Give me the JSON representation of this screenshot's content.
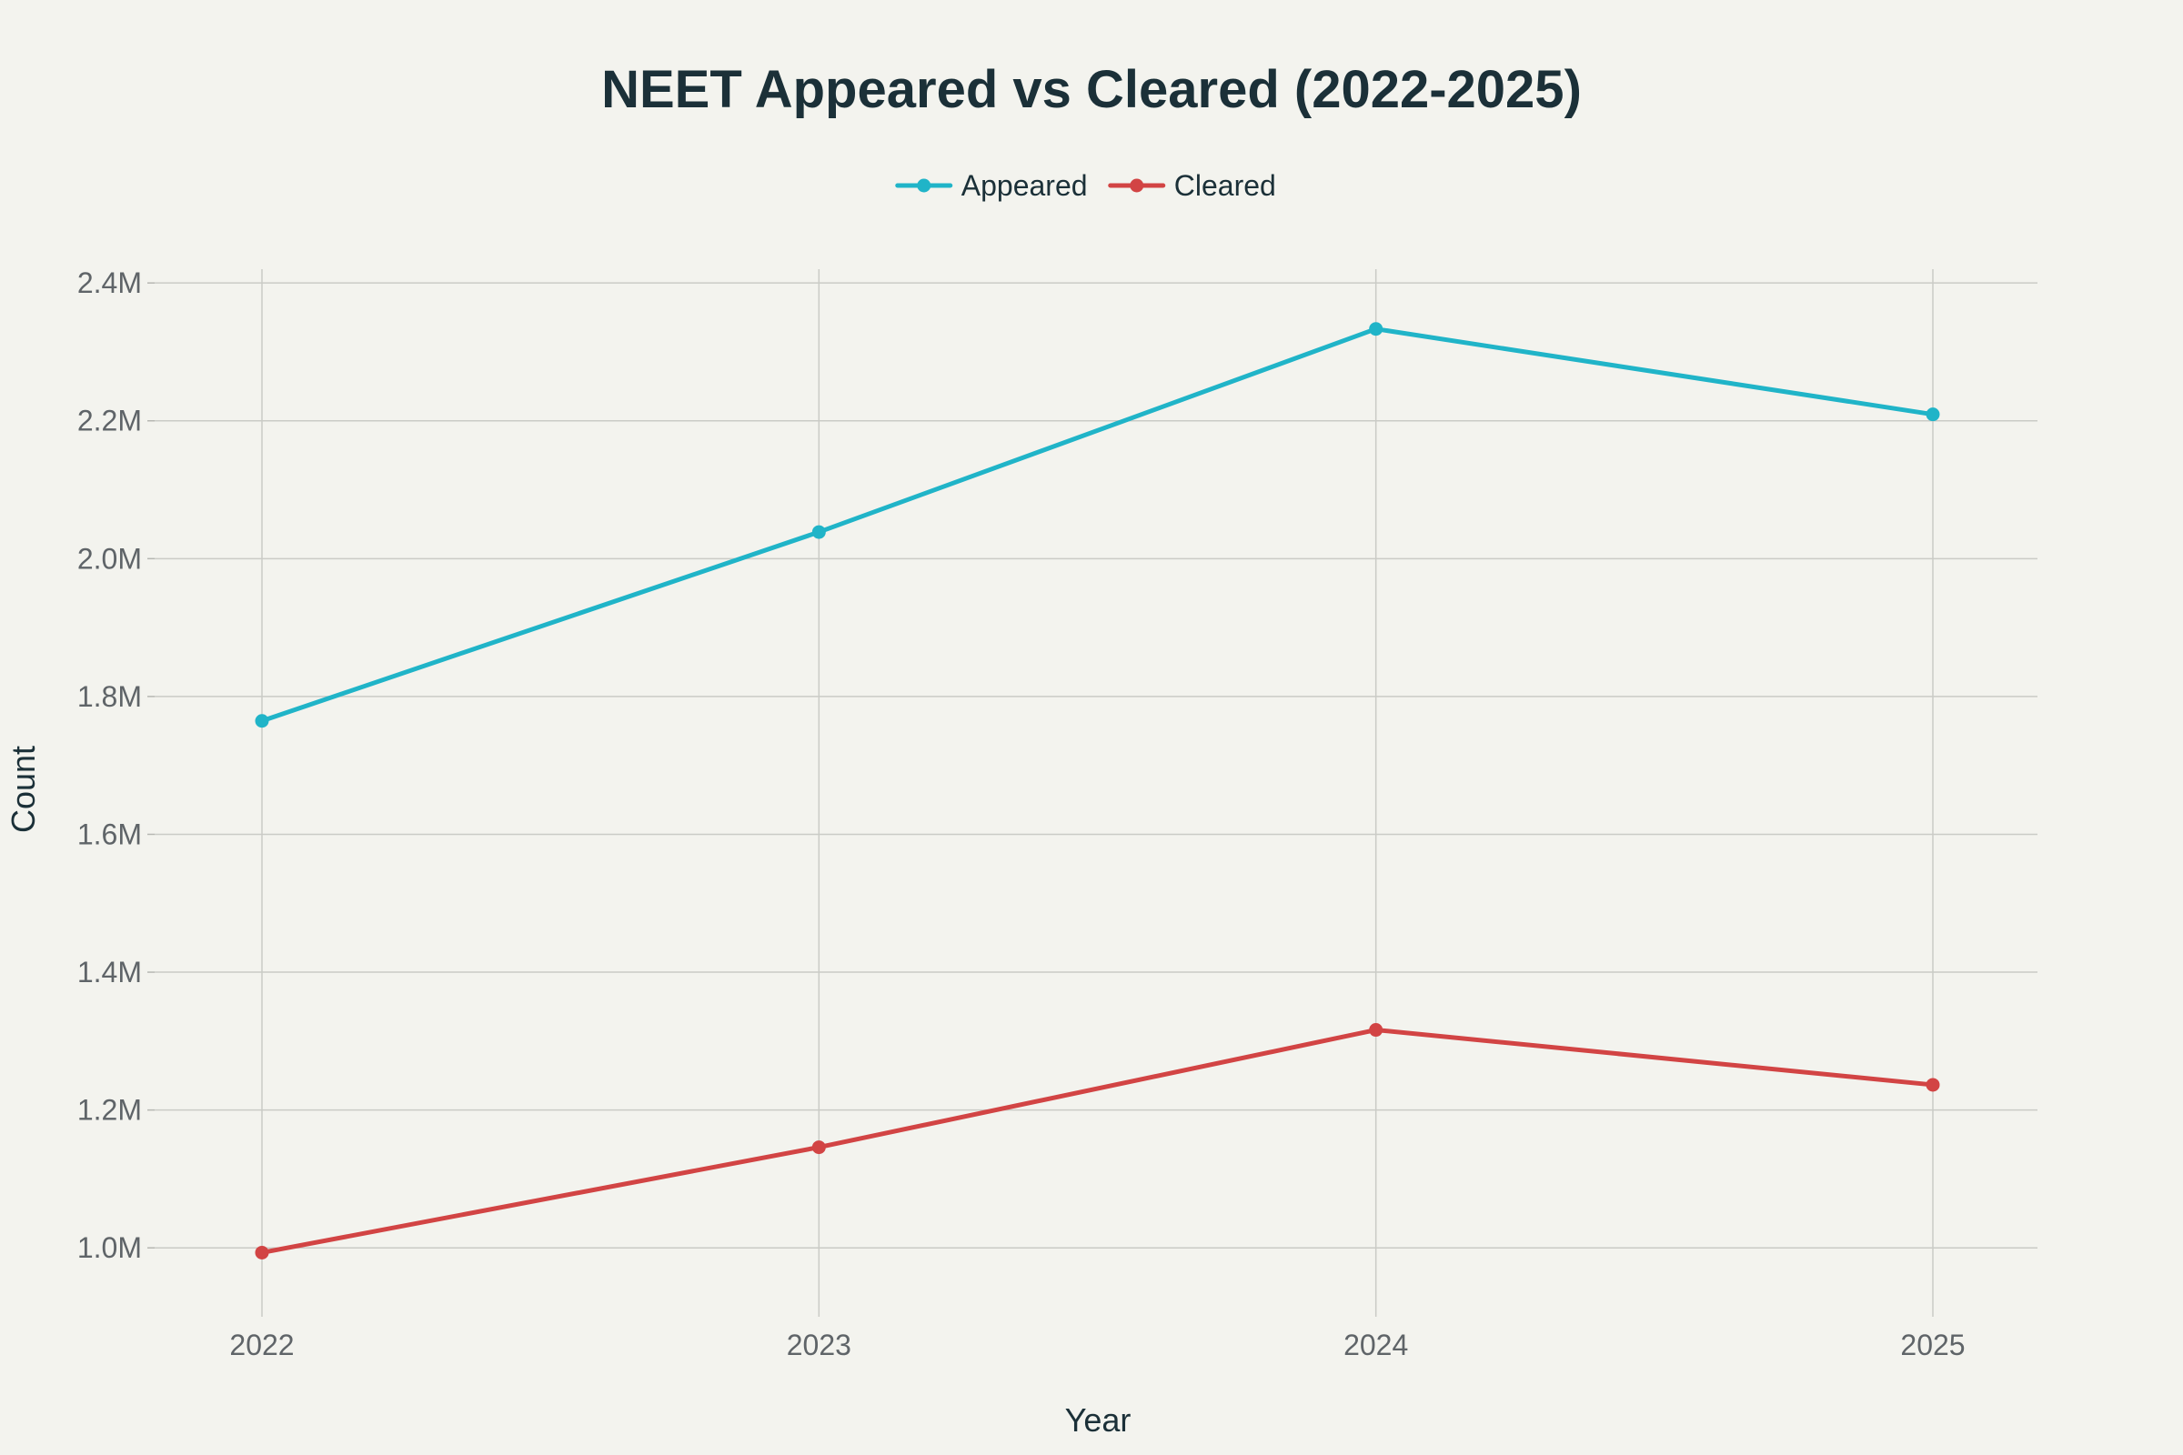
{
  "chart_data": {
    "type": "line",
    "title": "NEET Appeared vs Cleared (2022-2025)",
    "xlabel": "Year",
    "ylabel": "Count",
    "categories": [
      "2022",
      "2023",
      "2024",
      "2025"
    ],
    "x": [
      2022,
      2023,
      2024,
      2025
    ],
    "ylim": [
      900000,
      2420000
    ],
    "yticks": [
      1000000,
      1200000,
      1400000,
      1600000,
      1800000,
      2000000,
      2200000,
      2400000
    ],
    "ytick_labels": [
      "1.0M",
      "1.2M",
      "1.4M",
      "1.6M",
      "1.8M",
      "2.0M",
      "2.2M",
      "2.4M"
    ],
    "grid": true,
    "legend_position": "top-center",
    "series": [
      {
        "name": "Appeared",
        "color": "#20B4C8",
        "values": [
          1764571,
          2038596,
          2333297,
          2209318
        ]
      },
      {
        "name": "Cleared",
        "color": "#D24444",
        "values": [
          993069,
          1145976,
          1316268,
          1236531
        ]
      }
    ]
  }
}
